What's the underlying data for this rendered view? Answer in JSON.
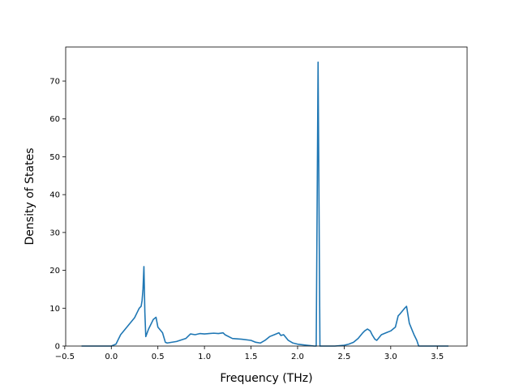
{
  "chart_data": {
    "type": "line",
    "title": "",
    "xlabel": "Frequency (THz)",
    "ylabel": "Density of States",
    "xlim": [
      -0.49,
      3.82
    ],
    "ylim": [
      0,
      79
    ],
    "xticks": [
      -0.5,
      0.0,
      0.5,
      1.0,
      1.5,
      2.0,
      2.5,
      3.0,
      3.5
    ],
    "xtick_labels": [
      "−0.5",
      "0.0",
      "0.5",
      "1.0",
      "1.5",
      "2.0",
      "2.5",
      "3.0",
      "3.5"
    ],
    "yticks": [
      0,
      10,
      20,
      30,
      40,
      50,
      60,
      70
    ],
    "ytick_labels": [
      "0",
      "10",
      "20",
      "30",
      "40",
      "50",
      "60",
      "70"
    ],
    "grid": false,
    "line_color": "#1f77b4",
    "series": [
      {
        "x": [
          -0.32,
          0.0,
          0.05,
          0.1,
          0.15,
          0.2,
          0.25,
          0.28,
          0.3,
          0.32,
          0.33,
          0.34,
          0.35,
          0.36,
          0.37,
          0.4,
          0.45,
          0.48,
          0.5,
          0.55,
          0.58,
          0.6,
          0.7,
          0.8,
          0.85,
          0.9,
          0.95,
          1.0,
          1.05,
          1.1,
          1.15,
          1.2,
          1.22,
          1.3,
          1.4,
          1.5,
          1.55,
          1.6,
          1.65,
          1.7,
          1.75,
          1.8,
          1.82,
          1.85,
          1.9,
          1.95,
          2.0,
          2.1,
          2.18,
          2.2,
          2.22,
          2.24,
          2.26,
          2.3,
          2.4,
          2.5,
          2.55,
          2.6,
          2.65,
          2.7,
          2.72,
          2.75,
          2.78,
          2.8,
          2.83,
          2.85,
          2.9,
          2.95,
          3.0,
          3.05,
          3.08,
          3.1,
          3.15,
          3.17,
          3.2,
          3.25,
          3.28,
          3.3,
          3.4,
          3.5,
          3.62
        ],
        "y": [
          0,
          0,
          0.5,
          3,
          4.5,
          6,
          7.5,
          9,
          10,
          10.5,
          12,
          15,
          21,
          9,
          2.5,
          4.5,
          7,
          7.6,
          5,
          3.5,
          1,
          0.8,
          1.2,
          2,
          3.2,
          3,
          3.3,
          3.2,
          3.3,
          3.4,
          3.3,
          3.5,
          3,
          2,
          1.8,
          1.5,
          1,
          0.8,
          1.5,
          2.5,
          3,
          3.5,
          2.8,
          3,
          1.5,
          0.8,
          0.5,
          0.2,
          0,
          0,
          75,
          0,
          0,
          0,
          0,
          0.2,
          0.5,
          1,
          2,
          3.5,
          4,
          4.5,
          4,
          3,
          1.8,
          1.5,
          3,
          3.5,
          4,
          5,
          8,
          8.5,
          10,
          10.5,
          6,
          3,
          1.5,
          0,
          0,
          0,
          0
        ]
      }
    ]
  }
}
